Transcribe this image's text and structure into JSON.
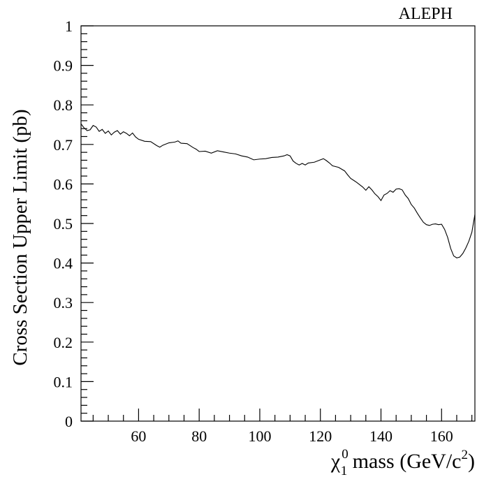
{
  "chart_data": {
    "type": "line",
    "title": "",
    "annotation": "ALEPH",
    "xlabel": {
      "symbol": "χ",
      "subscript": "1",
      "superscript": "0",
      "text_before_sup": " mass (GeV/c",
      "sup2": "2",
      "text_after_sup": ")"
    },
    "ylabel": "Cross Section Upper Limit  (pb)",
    "xlim": [
      41,
      171
    ],
    "ylim": [
      0,
      1
    ],
    "xticks_major": [
      60,
      80,
      100,
      120,
      140,
      160
    ],
    "xtick_labels": [
      "60",
      "80",
      "100",
      "120",
      "140",
      "160"
    ],
    "yticks_major": [
      0,
      0.1,
      0.2,
      0.3,
      0.4,
      0.5,
      0.6,
      0.7,
      0.8,
      0.9,
      1
    ],
    "ytick_labels": [
      "0",
      "0.1",
      "0.2",
      "0.3",
      "0.4",
      "0.5",
      "0.6",
      "0.7",
      "0.8",
      "0.9",
      "1"
    ],
    "grid": false,
    "legend": "none",
    "series": [
      {
        "x": [
          41,
          42,
          43,
          44,
          45,
          46,
          47,
          48,
          49,
          50,
          51,
          52,
          53,
          54,
          55,
          56,
          57,
          58,
          59,
          60,
          62,
          64,
          66,
          67,
          68,
          70,
          72,
          73,
          74,
          76,
          78,
          79,
          80,
          82,
          84,
          86,
          88,
          90,
          92,
          94,
          96,
          98,
          100,
          102,
          104,
          106,
          108,
          109,
          110,
          111,
          112,
          113,
          114,
          115,
          116,
          118,
          120,
          121,
          122,
          123,
          124,
          126,
          128,
          129,
          130,
          132,
          134,
          135,
          136,
          137,
          138,
          139,
          140,
          141,
          142,
          143,
          144,
          145,
          146,
          147,
          148,
          149,
          150,
          151,
          152,
          153,
          154,
          155,
          156,
          157,
          158,
          159,
          160,
          161,
          162,
          163,
          164,
          165,
          166,
          167,
          168,
          169,
          170,
          171
        ],
        "y": [
          0.752,
          0.742,
          0.735,
          0.737,
          0.748,
          0.744,
          0.733,
          0.738,
          0.728,
          0.734,
          0.724,
          0.731,
          0.735,
          0.726,
          0.732,
          0.728,
          0.722,
          0.729,
          0.719,
          0.713,
          0.708,
          0.707,
          0.697,
          0.693,
          0.698,
          0.704,
          0.706,
          0.709,
          0.703,
          0.702,
          0.692,
          0.688,
          0.682,
          0.683,
          0.678,
          0.684,
          0.681,
          0.678,
          0.676,
          0.671,
          0.668,
          0.661,
          0.663,
          0.664,
          0.667,
          0.668,
          0.671,
          0.674,
          0.671,
          0.658,
          0.652,
          0.648,
          0.652,
          0.648,
          0.653,
          0.655,
          0.661,
          0.664,
          0.659,
          0.653,
          0.646,
          0.642,
          0.633,
          0.623,
          0.614,
          0.604,
          0.592,
          0.584,
          0.593,
          0.585,
          0.575,
          0.568,
          0.558,
          0.572,
          0.576,
          0.583,
          0.579,
          0.587,
          0.588,
          0.585,
          0.572,
          0.563,
          0.548,
          0.539,
          0.526,
          0.514,
          0.503,
          0.497,
          0.495,
          0.498,
          0.499,
          0.497,
          0.498,
          0.485,
          0.465,
          0.437,
          0.418,
          0.413,
          0.415,
          0.424,
          0.438,
          0.455,
          0.478,
          0.523
        ]
      }
    ]
  }
}
